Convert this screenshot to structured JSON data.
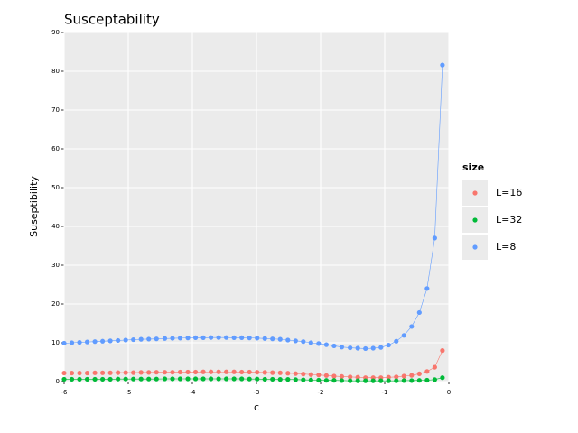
{
  "chart_data": {
    "type": "line",
    "title": "Susceptability",
    "x_label": "c",
    "y_label": "Suseptibility",
    "legend_title": "size",
    "x": [
      -6,
      -5.88,
      -5.76,
      -5.64,
      -5.52,
      -5.4,
      -5.28,
      -5.16,
      -5.04,
      -4.92,
      -4.8,
      -4.68,
      -4.56,
      -4.43,
      -4.31,
      -4.19,
      -4.07,
      -3.95,
      -3.83,
      -3.71,
      -3.59,
      -3.47,
      -3.35,
      -3.23,
      -3.11,
      -2.99,
      -2.87,
      -2.75,
      -2.63,
      -2.51,
      -2.39,
      -2.27,
      -2.15,
      -2.03,
      -1.91,
      -1.79,
      -1.67,
      -1.54,
      -1.42,
      -1.3,
      -1.18,
      -1.06,
      -0.94,
      -0.82,
      -0.7,
      -0.58,
      -0.46,
      -0.34,
      -0.22,
      -0.1
    ],
    "series": [
      {
        "name": "L=16",
        "color": "#F8766D",
        "values": [
          2.2,
          2.2,
          2.2,
          2.2,
          2.25,
          2.25,
          2.25,
          2.3,
          2.3,
          2.3,
          2.35,
          2.35,
          2.4,
          2.4,
          2.4,
          2.45,
          2.45,
          2.45,
          2.5,
          2.5,
          2.5,
          2.5,
          2.5,
          2.45,
          2.45,
          2.4,
          2.35,
          2.3,
          2.25,
          2.15,
          2.05,
          1.95,
          1.8,
          1.7,
          1.55,
          1.4,
          1.3,
          1.2,
          1.1,
          1.0,
          1.0,
          1.0,
          1.1,
          1.2,
          1.4,
          1.6,
          2.0,
          2.6,
          3.7,
          8.0
        ]
      },
      {
        "name": "L=32",
        "color": "#00BA38",
        "values": [
          0.6,
          0.6,
          0.6,
          0.6,
          0.6,
          0.6,
          0.6,
          0.65,
          0.65,
          0.65,
          0.65,
          0.65,
          0.65,
          0.7,
          0.7,
          0.7,
          0.7,
          0.7,
          0.7,
          0.7,
          0.7,
          0.7,
          0.7,
          0.7,
          0.65,
          0.65,
          0.6,
          0.6,
          0.55,
          0.55,
          0.5,
          0.45,
          0.4,
          0.35,
          0.3,
          0.3,
          0.25,
          0.2,
          0.2,
          0.2,
          0.2,
          0.2,
          0.2,
          0.2,
          0.25,
          0.25,
          0.3,
          0.35,
          0.5,
          1.0
        ]
      },
      {
        "name": "L=8",
        "color": "#619CFF",
        "values": [
          9.9,
          10.0,
          10.1,
          10.2,
          10.3,
          10.4,
          10.5,
          10.6,
          10.7,
          10.8,
          10.9,
          10.95,
          11.0,
          11.1,
          11.15,
          11.2,
          11.25,
          11.3,
          11.3,
          11.35,
          11.35,
          11.35,
          11.3,
          11.3,
          11.25,
          11.2,
          11.1,
          11.0,
          10.9,
          10.7,
          10.5,
          10.3,
          10.0,
          9.8,
          9.5,
          9.2,
          8.9,
          8.7,
          8.6,
          8.5,
          8.6,
          8.8,
          9.4,
          10.4,
          11.9,
          14.2,
          17.8,
          24.0,
          37.0,
          81.6
        ]
      }
    ],
    "xlim": [
      -6,
      0
    ],
    "xticks": [
      -6,
      -5,
      -4,
      -3,
      -2,
      -1,
      0
    ],
    "ylim": [
      0,
      90
    ],
    "yticks": [
      0,
      10,
      20,
      30,
      40,
      50,
      60,
      70,
      80,
      90
    ],
    "grid": true
  }
}
